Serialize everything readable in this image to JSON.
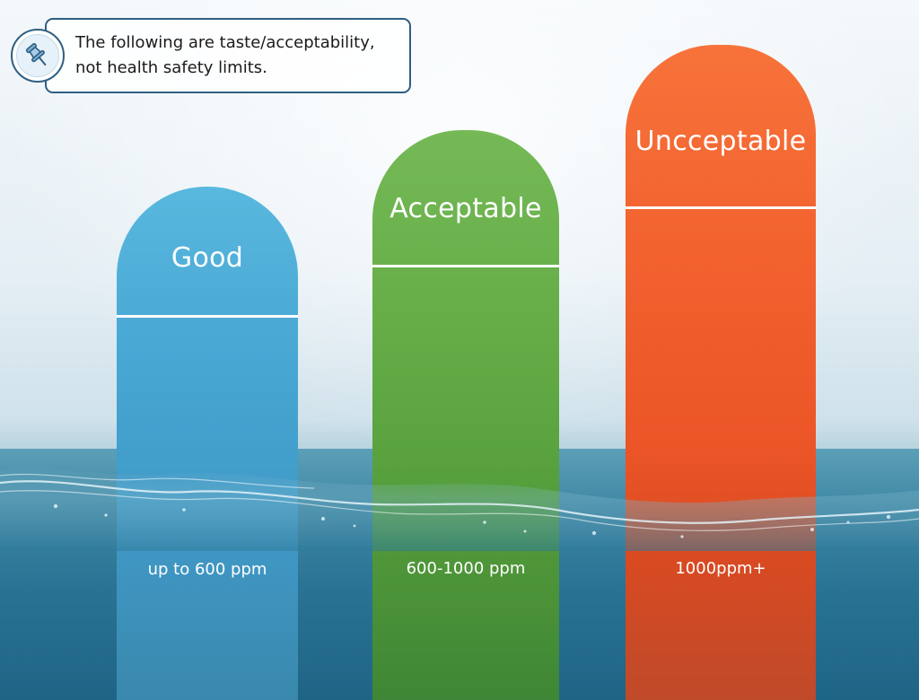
{
  "note": {
    "line1": "The following are taste/acceptability,",
    "line2": "not health safety limits.",
    "icon": "pushpin-icon"
  },
  "levels": [
    {
      "label": "Good",
      "range": "up to 600 ppm",
      "color": "#45a9d6"
    },
    {
      "label": "Acceptable",
      "range": "600-1000 ppm",
      "color": "#66ae47"
    },
    {
      "label": "Uncceptable",
      "range": "1000ppm+",
      "color": "#f05a2a"
    }
  ]
}
